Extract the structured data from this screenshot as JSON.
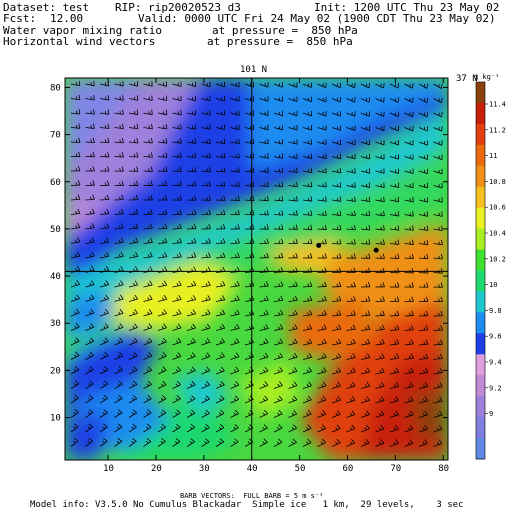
{
  "header": {
    "dataset": "Dataset: test",
    "rip": "RIP: rip20020523 d3",
    "init": "Init: 1200 UTC Thu 23 May 02",
    "fcst": "Fcst:",
    "fcst_value": "12.00",
    "valid": "Valid: 0000 UTC Fri 24 May 02 (1900 CDT Thu 23 May 02)",
    "field1": "Water vapor mixing ratio",
    "field1_level": "at pressure =  850 hPa",
    "field2": "Horizontal wind vectors",
    "field2_level": "at pressure =  850 hPa"
  },
  "plot": {
    "top_label": "101 N",
    "right_label": "37 N",
    "x_ticks": [
      "10",
      "20",
      "30",
      "40",
      "50",
      "60",
      "70",
      "80"
    ],
    "x_tick_values": [
      10,
      20,
      30,
      40,
      50,
      60,
      70,
      80
    ],
    "y_ticks": [
      "10",
      "20",
      "30",
      "40",
      "50",
      "60",
      "70",
      "80"
    ],
    "y_tick_values": [
      10,
      20,
      30,
      40,
      50,
      60,
      70,
      80
    ],
    "x_range": [
      1,
      81
    ],
    "y_range": [
      1,
      82
    ],
    "cross_x": 40,
    "cross_y": 41,
    "dots": [
      {
        "x": 54,
        "y": 46.5
      },
      {
        "x": 66,
        "y": 45.5
      }
    ]
  },
  "colorbar": {
    "units": "g kg⁻¹",
    "labels": [
      "11.4",
      "11.2",
      "11",
      "10.8",
      "10.6",
      "10.4",
      "10.2",
      "10",
      "9.8",
      "9.6",
      "9.4",
      "9.2",
      "9"
    ],
    "colors": [
      "#5e8ae6",
      "#7f7fe0",
      "#9f80dc",
      "#c08ad6",
      "#e0a0e0",
      "#1f3fe6",
      "#1e8cf0",
      "#1fc8d0",
      "#1fd870",
      "#40e030",
      "#a8ee20",
      "#e8f020",
      "#f6c020",
      "#f09018",
      "#ea6a10",
      "#e04010",
      "#c82008",
      "#8c4010"
    ]
  },
  "footer": {
    "barb_note": "BARB VECTORS:  FULL BARB = 5 m s⁻¹",
    "model_info": "Model info: V3.5.0 No Cumulus Blackadar  Simple ice   1 km,  29 levels,    3 sec"
  }
}
